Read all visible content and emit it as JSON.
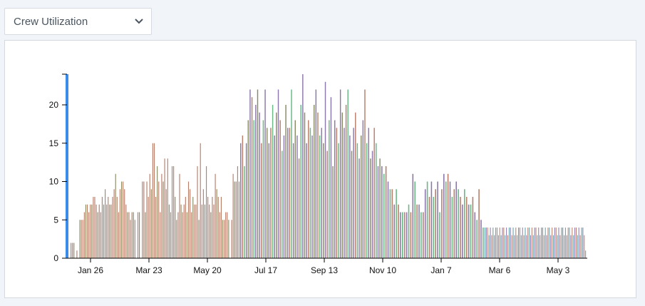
{
  "metric_select": {
    "selected": "Crew Utilization",
    "icon": "chevron-down-icon"
  },
  "colors": {
    "page_bg": "#f1f4f8",
    "axis_accent": "#3b8beb",
    "series_brown": "#b0705a",
    "series_olive": "#7a7f52",
    "series_purple": "#7f6aa0",
    "series_green": "#59b078",
    "series_teal": "#4f97a4"
  },
  "chart_data": {
    "type": "bar",
    "title": "",
    "xlabel": "",
    "ylabel": "",
    "ylim": [
      0,
      24
    ],
    "yticks": [
      "0",
      "5",
      "10",
      "15",
      "20"
    ],
    "xticks": [
      "Jan 26",
      "Mar 23",
      "May 20",
      "Jul 17",
      "Sep 13",
      "Nov 10",
      "Jan 7",
      "Mar 6",
      "May 3"
    ],
    "grid": false,
    "legend": "none",
    "series": [
      {
        "period": "Jan 26 – Jun 20 (approx.)",
        "values": [
          2,
          2,
          2,
          0,
          1,
          0,
          5,
          5,
          5,
          6,
          7,
          7,
          6,
          7,
          7,
          8,
          8,
          7,
          6,
          7,
          6,
          8,
          7,
          9,
          7,
          8,
          7,
          7,
          8,
          9,
          11,
          8,
          6,
          9,
          10,
          10,
          9,
          7,
          6,
          6,
          5,
          6,
          6,
          5,
          0,
          6,
          6,
          0,
          10,
          10,
          6,
          10,
          8,
          11,
          9,
          15,
          15,
          8,
          12,
          10,
          6,
          11,
          10,
          13,
          9,
          13,
          7,
          6,
          12,
          12,
          8,
          5,
          6,
          11,
          7,
          6,
          7,
          8,
          6,
          10,
          9,
          6,
          8,
          7,
          7,
          12,
          5,
          15,
          7,
          9,
          7,
          12,
          8,
          7,
          6,
          8,
          7,
          11,
          9,
          8,
          6,
          8,
          5,
          5,
          6,
          6,
          5,
          0,
          5,
          11,
          10,
          10,
          12,
          10
        ]
      },
      {
        "period": "Jun 20 – Dec 2 (approx.)",
        "values": [
          15,
          16,
          12,
          15,
          18,
          22,
          21,
          18,
          20,
          22,
          19,
          15,
          18,
          22,
          17,
          15,
          17,
          20,
          16,
          19,
          22,
          18,
          14,
          16,
          20,
          17,
          17,
          22,
          15,
          18,
          16,
          13,
          20,
          24,
          19,
          15,
          18,
          17,
          16,
          20,
          22,
          19,
          16,
          17,
          15,
          23,
          14,
          18,
          21,
          12,
          18,
          17,
          15,
          22,
          19,
          17,
          20,
          22,
          16,
          14,
          17,
          19,
          15,
          13,
          16,
          18,
          22,
          15,
          17,
          13,
          14,
          17,
          15,
          12,
          13
        ]
      },
      {
        "period": "Dec 2 – Feb 20 (approx.)",
        "values": [
          12,
          11,
          12,
          10,
          9,
          9,
          7,
          9,
          7,
          6,
          6,
          6,
          6,
          7,
          6,
          11,
          10,
          7,
          7,
          6,
          6,
          9,
          10,
          8,
          10,
          8,
          9,
          10,
          6,
          9,
          11,
          10,
          11,
          10,
          8,
          9,
          10,
          9,
          8,
          7,
          9,
          8,
          7,
          7,
          8,
          6,
          5,
          9,
          5,
          4
        ]
      },
      {
        "period": "Feb 20 – May 25 (approx.)",
        "values": [
          4,
          4,
          4,
          3,
          4,
          3,
          4,
          3,
          4,
          4,
          3,
          4,
          3,
          4,
          4,
          3,
          4,
          3,
          4,
          4,
          3,
          4,
          3,
          4,
          3,
          4,
          4,
          3,
          4,
          3,
          4,
          3,
          4,
          4,
          3,
          4,
          3,
          4,
          4,
          3,
          4,
          3,
          4,
          4,
          3,
          4,
          3,
          4,
          4,
          3,
          4,
          3,
          4,
          4,
          3,
          4,
          3,
          4,
          4,
          3,
          4,
          3,
          4,
          4,
          3,
          4,
          3,
          4,
          4,
          3,
          4,
          3,
          4,
          4,
          3,
          1
        ]
      }
    ]
  }
}
